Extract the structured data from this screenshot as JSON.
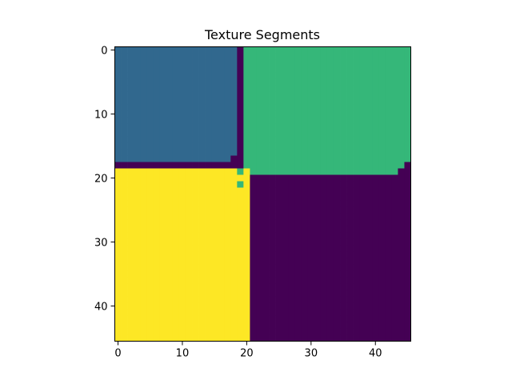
{
  "chart_data": {
    "type": "heatmap",
    "title": "Texture Segments",
    "xlabel": "",
    "ylabel": "",
    "grid": false,
    "legend": "none",
    "colormap": "viridis",
    "rows": 46,
    "cols": 46,
    "xlim": [
      -0.5,
      45.5
    ],
    "ylim": [
      45.5,
      -0.5
    ],
    "x_ticks": [
      0,
      10,
      20,
      30,
      40
    ],
    "y_ticks": [
      0,
      10,
      20,
      30,
      40
    ],
    "segment_colors": {
      "0": "#440154",
      "1": "#31688e",
      "2": "#35b779",
      "3": "#fde725"
    },
    "segments": [
      {
        "label": 0,
        "row_start": 0,
        "row_end": 45,
        "col_start": 0,
        "col_end": 45
      },
      {
        "label": 1,
        "row_start": 0,
        "row_end": 17,
        "col_start": 0,
        "col_end": 18
      },
      {
        "label": 2,
        "row_start": 0,
        "row_end": 19,
        "col_start": 20,
        "col_end": 45
      },
      {
        "label": 3,
        "row_start": 19,
        "row_end": 45,
        "col_start": 0,
        "col_end": 20
      },
      {
        "label": 0,
        "row_start": 0,
        "row_end": 17,
        "col_start": 19,
        "col_end": 19
      },
      {
        "label": 0,
        "row_start": 17,
        "row_end": 18,
        "col_start": 18,
        "col_end": 19
      },
      {
        "label": 0,
        "row_start": 18,
        "row_end": 18,
        "col_start": 0,
        "col_end": 17
      },
      {
        "label": 2,
        "row_start": 19,
        "row_end": 19,
        "col_start": 19,
        "col_end": 19
      },
      {
        "label": 3,
        "row_start": 20,
        "row_end": 20,
        "col_start": 19,
        "col_end": 20
      },
      {
        "label": 2,
        "row_start": 21,
        "row_end": 21,
        "col_start": 19,
        "col_end": 19
      },
      {
        "label": 0,
        "row_start": 20,
        "row_end": 20,
        "col_start": 21,
        "col_end": 21
      },
      {
        "label": 0,
        "row_start": 18,
        "row_end": 19,
        "col_start": 45,
        "col_end": 45
      },
      {
        "label": 0,
        "row_start": 19,
        "row_end": 19,
        "col_start": 44,
        "col_end": 44
      }
    ]
  }
}
